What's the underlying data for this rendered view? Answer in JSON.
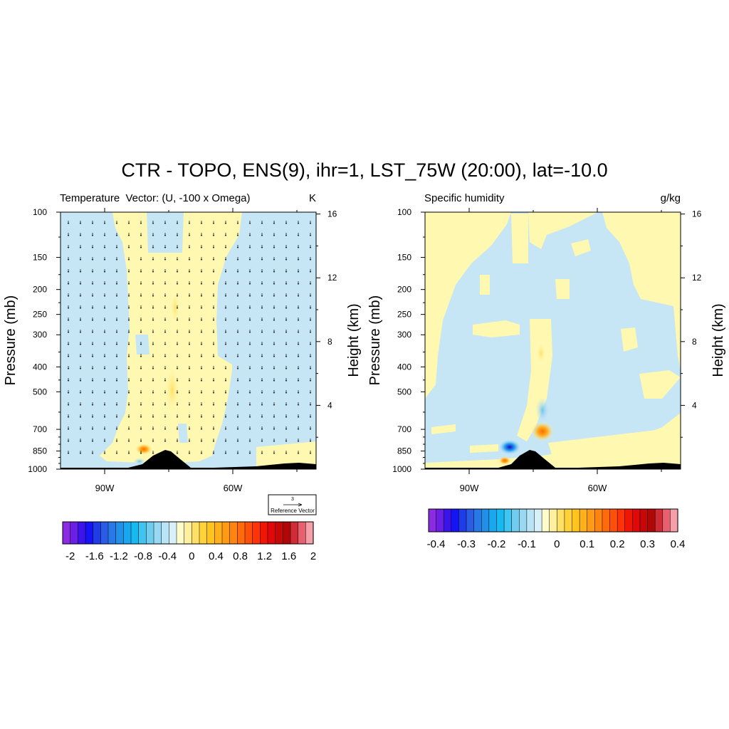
{
  "figure": {
    "title": "CTR - TOPO, ENS(9), ihr=1, LST_75W (20:00), lat=-10.0"
  },
  "colors": {
    "positive_fill": "#fff8b0",
    "negative_fill": "#c6e6f5",
    "terrain": "#000000",
    "cbar_temperature": [
      "#8b2be2",
      "#6a1ee6",
      "#3b14ec",
      "#1414f5",
      "#1e3ce8",
      "#2a5ce6",
      "#2878e8",
      "#2090e8",
      "#18a8f0",
      "#18b8f0",
      "#40c4f0",
      "#70cdf0",
      "#98d8f2",
      "#b8e4f5",
      "#d8f0f8",
      "#fffccc",
      "#fff0a0",
      "#ffe066",
      "#ffd23a",
      "#ffc41e",
      "#ffb01a",
      "#ff9a14",
      "#ff8410",
      "#ff6a0c",
      "#ff500a",
      "#ff3208",
      "#f01606",
      "#e00808",
      "#c80808",
      "#b00808",
      "#d02c36",
      "#e86070",
      "#f5a0a8"
    ],
    "cbar_humidity": [
      "#8b2be2",
      "#6a1ee6",
      "#3b14ec",
      "#1414f5",
      "#1e3ce8",
      "#2a5ce6",
      "#2878e8",
      "#2090e8",
      "#18a8f0",
      "#18b8f0",
      "#40c4f0",
      "#70cdf0",
      "#98d8f2",
      "#b8e4f5",
      "#d8f0f8",
      "#fffccc",
      "#fff0a0",
      "#ffe066",
      "#ffd23a",
      "#ffc41e",
      "#ffb01a",
      "#ff9a14",
      "#ff8410",
      "#ff6a0c",
      "#ff500a",
      "#ff3208",
      "#f01606",
      "#e00808",
      "#c80808",
      "#b00808",
      "#d02c36",
      "#e86070",
      "#f5a0a8"
    ]
  },
  "chart_data": [
    {
      "type": "heatmap",
      "left_title": "Temperature",
      "center_title": "Vector: (U, -100 x Omega)",
      "units": "K",
      "ylabel": "Pressure (mb)",
      "ylabel_right": "Height (km)",
      "x_ticks": [
        "90W",
        "60W"
      ],
      "y_ticks": [
        "100",
        "150",
        "200",
        "250",
        "300",
        "400",
        "500",
        "700",
        "850",
        "1000"
      ],
      "y_right_ticks": [
        "16",
        "12",
        "8",
        "4"
      ],
      "reference_vector": {
        "magnitude": "3",
        "label": "Reference Vector"
      },
      "colorbar_labels": [
        "-2",
        "-1.6",
        "-1.2",
        "-0.8",
        "-0.4",
        "0",
        "0.4",
        "0.8",
        "1.2",
        "1.6",
        "2"
      ]
    },
    {
      "type": "heatmap",
      "left_title": "Specific humidity",
      "center_title": "",
      "units": "g/kg",
      "ylabel": "Pressure (mb)",
      "ylabel_right": "Height (km)",
      "x_ticks": [
        "90W",
        "60W"
      ],
      "y_ticks": [
        "100",
        "150",
        "200",
        "250",
        "300",
        "400",
        "500",
        "700",
        "850",
        "1000"
      ],
      "y_right_ticks": [
        "16",
        "12",
        "8",
        "4"
      ],
      "colorbar_labels": [
        "-0.4",
        "-0.3",
        "-0.2",
        "-0.1",
        "0",
        "0.1",
        "0.2",
        "0.3",
        "0.4"
      ]
    }
  ]
}
